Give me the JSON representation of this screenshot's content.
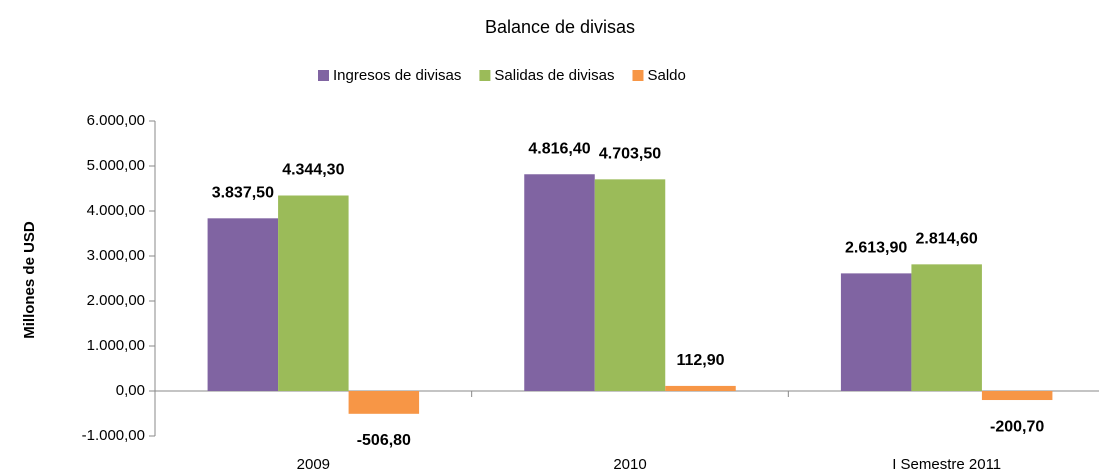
{
  "chart_data": {
    "type": "bar",
    "title": "Balance de divisas",
    "y_label": "Millones de USD",
    "categories": [
      "2009",
      "2010",
      "I Semestre 2011"
    ],
    "series": [
      {
        "name": "Ingresos de divisas",
        "color": "#8064a2",
        "values": [
          3837.5,
          4816.4,
          2613.9
        ],
        "value_labels": [
          "3.837,50",
          "4.816,40",
          "2.613,90"
        ]
      },
      {
        "name": "Salidas de divisas",
        "color": "#9bbb59",
        "values": [
          4344.3,
          4703.5,
          2814.6
        ],
        "value_labels": [
          "4.344,30",
          "4.703,50",
          "2.814,60"
        ]
      },
      {
        "name": "Saldo",
        "color": "#f79646",
        "values": [
          -506.8,
          112.9,
          -200.7
        ],
        "value_labels": [
          "-506,80",
          "112,90",
          "-200,70"
        ]
      }
    ],
    "ylim": [
      -1000,
      6000
    ],
    "yticks": [
      {
        "value": -1000,
        "label": "-1.000,00"
      },
      {
        "value": 0,
        "label": "0,00"
      },
      {
        "value": 1000,
        "label": "1.000,00"
      },
      {
        "value": 2000,
        "label": "2.000,00"
      },
      {
        "value": 3000,
        "label": "3.000,00"
      },
      {
        "value": 4000,
        "label": "4.000,00"
      },
      {
        "value": 5000,
        "label": "5.000,00"
      },
      {
        "value": 6000,
        "label": "6.000,00"
      }
    ],
    "grid": false,
    "legend": "top"
  }
}
